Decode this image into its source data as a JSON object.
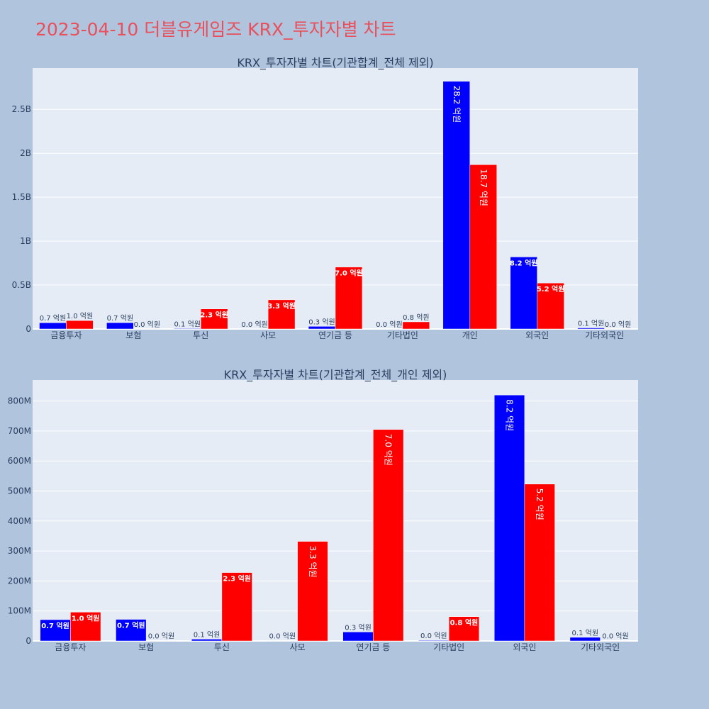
{
  "page": {
    "title": "2023-04-10 더블유게임즈 KRX_투자자별 차트",
    "background": "#b0c4de",
    "title_color": "#e8505b"
  },
  "chart_data": [
    {
      "type": "bar",
      "title": "KRX_투자자별 차트(기관합계_전체 제외)",
      "categories": [
        "금융투자",
        "보험",
        "투신",
        "사모",
        "연기금 등",
        "기타법인",
        "개인",
        "외국인",
        "기타외국인"
      ],
      "series": [
        {
          "color": "#0000ff",
          "values": [
            71000000,
            72000000,
            6000000,
            1000000,
            30000000,
            2000000,
            2820000000,
            820000000,
            12000000
          ],
          "labels": [
            "0.7 억원",
            "0.7 억원",
            "0.1 억원",
            "0.0 억원",
            "0.3 억원",
            "0.0 억원",
            "28.2 억원",
            "8.2 억원",
            "0.1 억원"
          ]
        },
        {
          "color": "#ff0000",
          "values": [
            96000000,
            1000000,
            228000000,
            332000000,
            705000000,
            81000000,
            1870000000,
            523000000,
            1000000
          ],
          "labels": [
            "1.0 억원",
            "0.0 억원",
            "2.3 억원",
            "3.3 억원",
            "7.0 억원",
            "0.8 억원",
            "18.7 억원",
            "5.2 억원",
            "0.0 억원"
          ]
        }
      ],
      "ylim": [
        0,
        2970000000
      ],
      "yticks": [
        0,
        500000000,
        1000000000,
        1500000000,
        2000000000,
        2500000000
      ],
      "ytick_labels": [
        "0",
        "0.5B",
        "1B",
        "1.5B",
        "2B",
        "2.5B"
      ],
      "grid": true,
      "plot_bg": "#e5ecf6"
    },
    {
      "type": "bar",
      "title": "KRX_투자자별 차트(기관합계_전체_개인 제외)",
      "categories": [
        "금융투자",
        "보험",
        "투신",
        "사모",
        "연기금 등",
        "기타법인",
        "외국인",
        "기타외국인"
      ],
      "series": [
        {
          "color": "#0000ff",
          "values": [
            71000000,
            72000000,
            6000000,
            1000000,
            30000000,
            2000000,
            820000000,
            12000000
          ],
          "labels": [
            "0.7 억원",
            "0.7 억원",
            "0.1 억원",
            "0.0 억원",
            "0.3 억원",
            "0.0 억원",
            "8.2 억원",
            "0.1 억원"
          ]
        },
        {
          "color": "#ff0000",
          "values": [
            96000000,
            1000000,
            228000000,
            332000000,
            705000000,
            81000000,
            523000000,
            1000000
          ],
          "labels": [
            "1.0 억원",
            "0.0 억원",
            "2.3 억원",
            "3.3 억원",
            "7.0 억원",
            "0.8 억원",
            "5.2 억원",
            "0.0 억원"
          ]
        }
      ],
      "ylim": [
        0,
        870000000
      ],
      "yticks": [
        0,
        100000000,
        200000000,
        300000000,
        400000000,
        500000000,
        600000000,
        700000000,
        800000000
      ],
      "ytick_labels": [
        "0",
        "100M",
        "200M",
        "300M",
        "400M",
        "500M",
        "600M",
        "700M",
        "800M"
      ],
      "grid": true,
      "plot_bg": "#e5ecf6"
    }
  ]
}
